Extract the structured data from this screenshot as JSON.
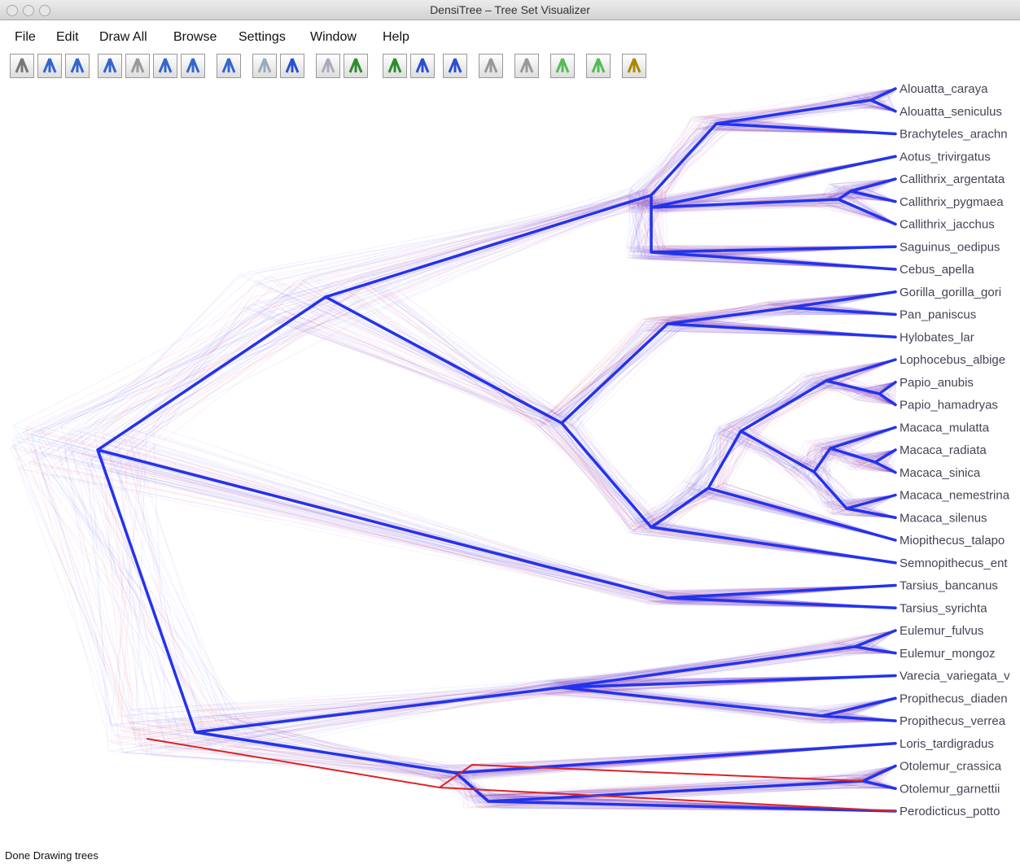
{
  "window": {
    "title": "DensiTree – Tree Set Visualizer"
  },
  "menu": [
    "File",
    "Edit",
    "Draw All",
    "Browse",
    "Settings",
    "Window",
    "Help"
  ],
  "taxa": [
    "Alouatta_caraya",
    "Alouatta_seniculus",
    "Brachyteles_arachn",
    "Aotus_trivirgatus",
    "Callithrix_argentata",
    "Callithrix_pygmaea",
    "Callithrix_jacchus",
    "Saguinus_oedipus",
    "Cebus_apella",
    "Gorilla_gorilla_gori",
    "Pan_paniscus",
    "Hylobates_lar",
    "Lophocebus_albige",
    "Papio_anubis",
    "Papio_hamadryas",
    "Macaca_mulatta",
    "Macaca_radiata",
    "Macaca_sinica",
    "Macaca_nemestrina",
    "Macaca_silenus",
    "Miopithecus_talapo",
    "Semnopithecus_ent",
    "Tarsius_bancanus",
    "Tarsius_syrichta",
    "Eulemur_fulvus",
    "Eulemur_mongoz",
    "Varecia_variegata_v",
    "Propithecus_diaden",
    "Propithecus_verrea",
    "Loris_tardigradus",
    "Otolemur_crassica",
    "Otolemur_garnettii",
    "Perodicticus_potto"
  ],
  "status": "Done Drawing trees"
}
